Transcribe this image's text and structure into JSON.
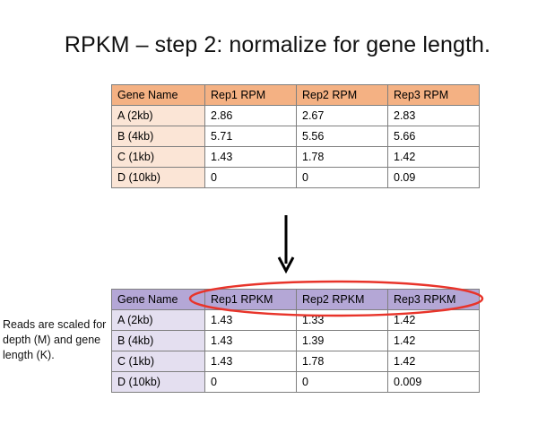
{
  "title": "RPKM – step 2: normalize for gene length.",
  "top_table": {
    "headers": [
      "Gene Name",
      "Rep1 RPM",
      "Rep2 RPM",
      "Rep3 RPM"
    ],
    "rows": [
      [
        "A (2kb)",
        "2.86",
        "2.67",
        "2.83"
      ],
      [
        "B (4kb)",
        "5.71",
        "5.56",
        "5.66"
      ],
      [
        "C (1kb)",
        "1.43",
        "1.78",
        "1.42"
      ],
      [
        "D (10kb)",
        "0",
        "0",
        "0.09"
      ]
    ]
  },
  "bottom_table": {
    "headers": [
      "Gene Name",
      "Rep1 RPKM",
      "Rep2 RPKM",
      "Rep3 RPKM"
    ],
    "rows": [
      [
        "A (2kb)",
        "1.43",
        "1.33",
        "1.42"
      ],
      [
        "B (4kb)",
        "1.43",
        "1.39",
        "1.42"
      ],
      [
        "C (1kb)",
        "1.43",
        "1.78",
        "1.42"
      ],
      [
        "D (10kb)",
        "0",
        "0",
        "0.009"
      ]
    ]
  },
  "side_note": "Reads are scaled for depth (M) and gene length (K).",
  "colors": {
    "top_header": "#f4b183",
    "top_name_cell": "#fbe5d6",
    "bottom_header": "#b4a7d6",
    "bottom_name_cell": "#e4dff0",
    "highlight_oval": "#e8342a"
  }
}
